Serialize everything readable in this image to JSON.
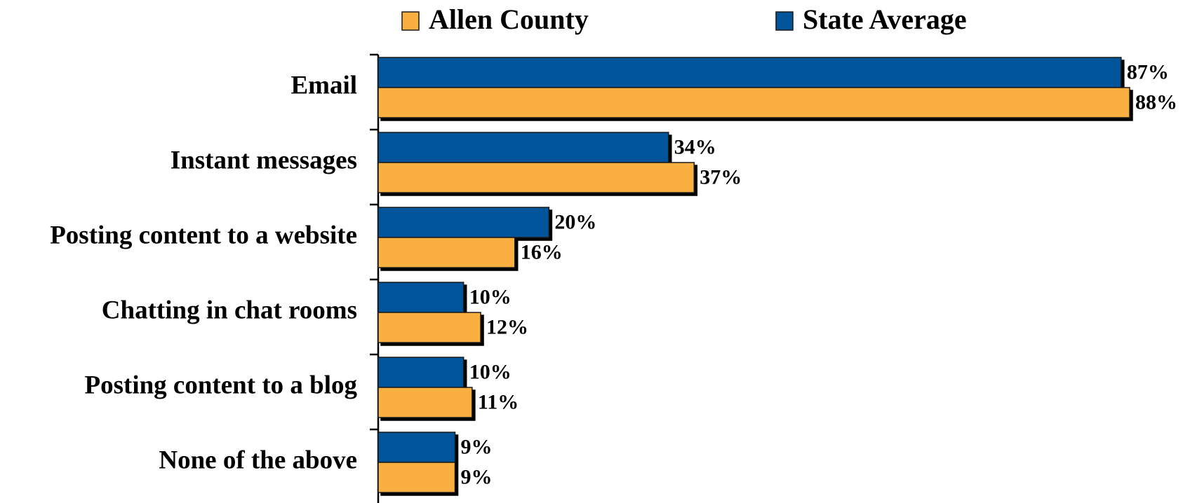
{
  "chart_data": {
    "type": "bar",
    "orientation": "horizontal",
    "categories": [
      "Email",
      "Instant messages",
      "Posting content to a website",
      "Chatting in chat rooms",
      "Posting content to a blog",
      "None of the above"
    ],
    "series": [
      {
        "name": "Allen County",
        "color": "#f9b040",
        "values": [
          88,
          37,
          16,
          12,
          11,
          9
        ],
        "value_labels": [
          "88%",
          "37%",
          "16%",
          "12%",
          "11%",
          "9%"
        ]
      },
      {
        "name": "State Average",
        "color": "#00559a",
        "values": [
          87,
          34,
          20,
          10,
          10,
          9
        ],
        "value_labels": [
          "87%",
          "34%",
          "20%",
          "10%",
          "10%",
          "9%"
        ]
      }
    ],
    "legend": "top"
  }
}
